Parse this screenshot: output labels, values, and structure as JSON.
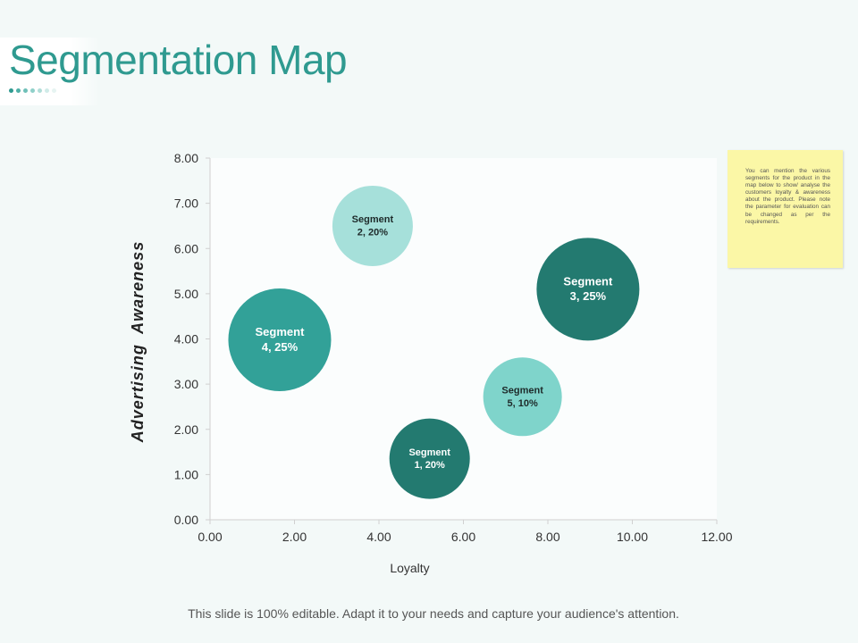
{
  "page": {
    "title": "Segmentation Map",
    "note": "You can mention the various segments for the product in the map below to show/ analyse the customers loyalty & awareness about the product. Please note the parameter for evaluation can be changed as per the requirements.",
    "footer": "This slide is 100% editable. Adapt it to your needs and capture your audience's attention.",
    "colors": {
      "accent": "#2f9a90",
      "note_background": "#fbf7a6",
      "plot_background": "#fbfdfd"
    }
  },
  "chart_data": {
    "type": "scatter",
    "title": "",
    "xlabel": "Loyalty",
    "ylabel": "Advertising  Awareness",
    "xlim": [
      0,
      12
    ],
    "ylim": [
      0,
      8
    ],
    "x_ticks": [
      "0.00",
      "2.00",
      "4.00",
      "6.00",
      "8.00",
      "10.00",
      "12.00"
    ],
    "y_ticks": [
      "0.00",
      "1.00",
      "2.00",
      "3.00",
      "4.00",
      "5.00",
      "6.00",
      "7.00",
      "8.00"
    ],
    "grid": false,
    "legend": "none",
    "points": [
      {
        "label_line1": "Segment",
        "label_line2": "1, 20%",
        "x": 5.2,
        "y": 1.35,
        "size_pct": 20,
        "color": "#237a70"
      },
      {
        "label_line1": "Segment",
        "label_line2": "2, 20%",
        "x": 3.85,
        "y": 6.5,
        "size_pct": 20,
        "color": "#a6e0da"
      },
      {
        "label_line1": "Segment",
        "label_line2": "3, 25%",
        "x": 8.95,
        "y": 5.1,
        "size_pct": 25,
        "color": "#237a70"
      },
      {
        "label_line1": "Segment",
        "label_line2": "4, 25%",
        "x": 1.65,
        "y": 3.98,
        "size_pct": 25,
        "color": "#32a198"
      },
      {
        "label_line1": "Segment",
        "label_line2": "5, 10%",
        "x": 7.4,
        "y": 2.72,
        "size_pct": 10,
        "color": "#7fd4cb"
      }
    ]
  }
}
